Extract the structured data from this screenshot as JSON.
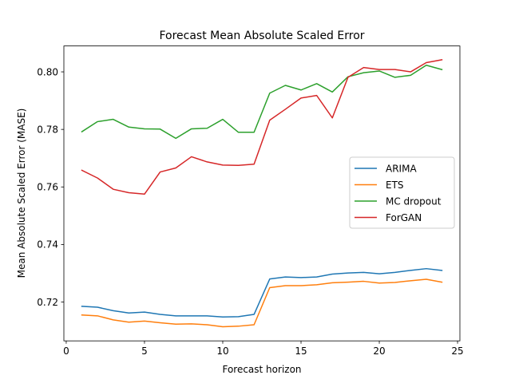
{
  "chart_data": {
    "type": "line",
    "title": "Forecast Mean Absolute Scaled Error",
    "xlabel": "Forecast horizon",
    "ylabel": "Mean Absolute Scaled Error (MASE)",
    "xlim": [
      -0.15,
      25.15
    ],
    "ylim": [
      0.7065,
      0.809
    ],
    "xticks": [
      0,
      5,
      10,
      15,
      20,
      25
    ],
    "yticks": [
      0.72,
      0.74,
      0.76,
      0.78,
      0.8
    ],
    "ytick_labels": [
      "0.72",
      "0.74",
      "0.76",
      "0.78",
      "0.80"
    ],
    "legend_position": "center-right",
    "grid": false,
    "x": [
      1,
      2,
      3,
      4,
      5,
      6,
      7,
      8,
      9,
      10,
      11,
      12,
      13,
      14,
      15,
      16,
      17,
      18,
      19,
      20,
      21,
      22,
      23,
      24
    ],
    "series": [
      {
        "name": "ARIMA",
        "color": "#1f77b4",
        "values": [
          0.7185,
          0.7182,
          0.717,
          0.7162,
          0.7165,
          0.7157,
          0.7152,
          0.7152,
          0.7152,
          0.7148,
          0.7149,
          0.7157,
          0.728,
          0.7287,
          0.7285,
          0.7287,
          0.7297,
          0.7301,
          0.7303,
          0.7298,
          0.7303,
          0.731,
          0.7316,
          0.731
        ]
      },
      {
        "name": "ETS",
        "color": "#ff7f0e",
        "values": [
          0.7155,
          0.7152,
          0.7138,
          0.713,
          0.7134,
          0.7128,
          0.7123,
          0.7124,
          0.7121,
          0.7114,
          0.7116,
          0.7121,
          0.725,
          0.7257,
          0.7257,
          0.726,
          0.7267,
          0.7269,
          0.7272,
          0.7266,
          0.7268,
          0.7274,
          0.7279,
          0.7269
        ]
      },
      {
        "name": "MC dropout",
        "color": "#2ca02c",
        "values": [
          0.7792,
          0.7827,
          0.7835,
          0.7808,
          0.7802,
          0.7801,
          0.7769,
          0.7802,
          0.7804,
          0.7835,
          0.779,
          0.779,
          0.7926,
          0.7953,
          0.7937,
          0.7959,
          0.793,
          0.7983,
          0.7997,
          0.8003,
          0.7981,
          0.7988,
          0.8023,
          0.8008
        ]
      },
      {
        "name": "ForGAN",
        "color": "#d62728",
        "values": [
          0.7658,
          0.7631,
          0.7592,
          0.758,
          0.7575,
          0.7652,
          0.7666,
          0.7705,
          0.7687,
          0.7676,
          0.7675,
          0.7679,
          0.7832,
          0.787,
          0.7909,
          0.7918,
          0.784,
          0.7981,
          0.8015,
          0.8008,
          0.8008,
          0.8,
          0.8032,
          0.8042
        ]
      }
    ]
  }
}
